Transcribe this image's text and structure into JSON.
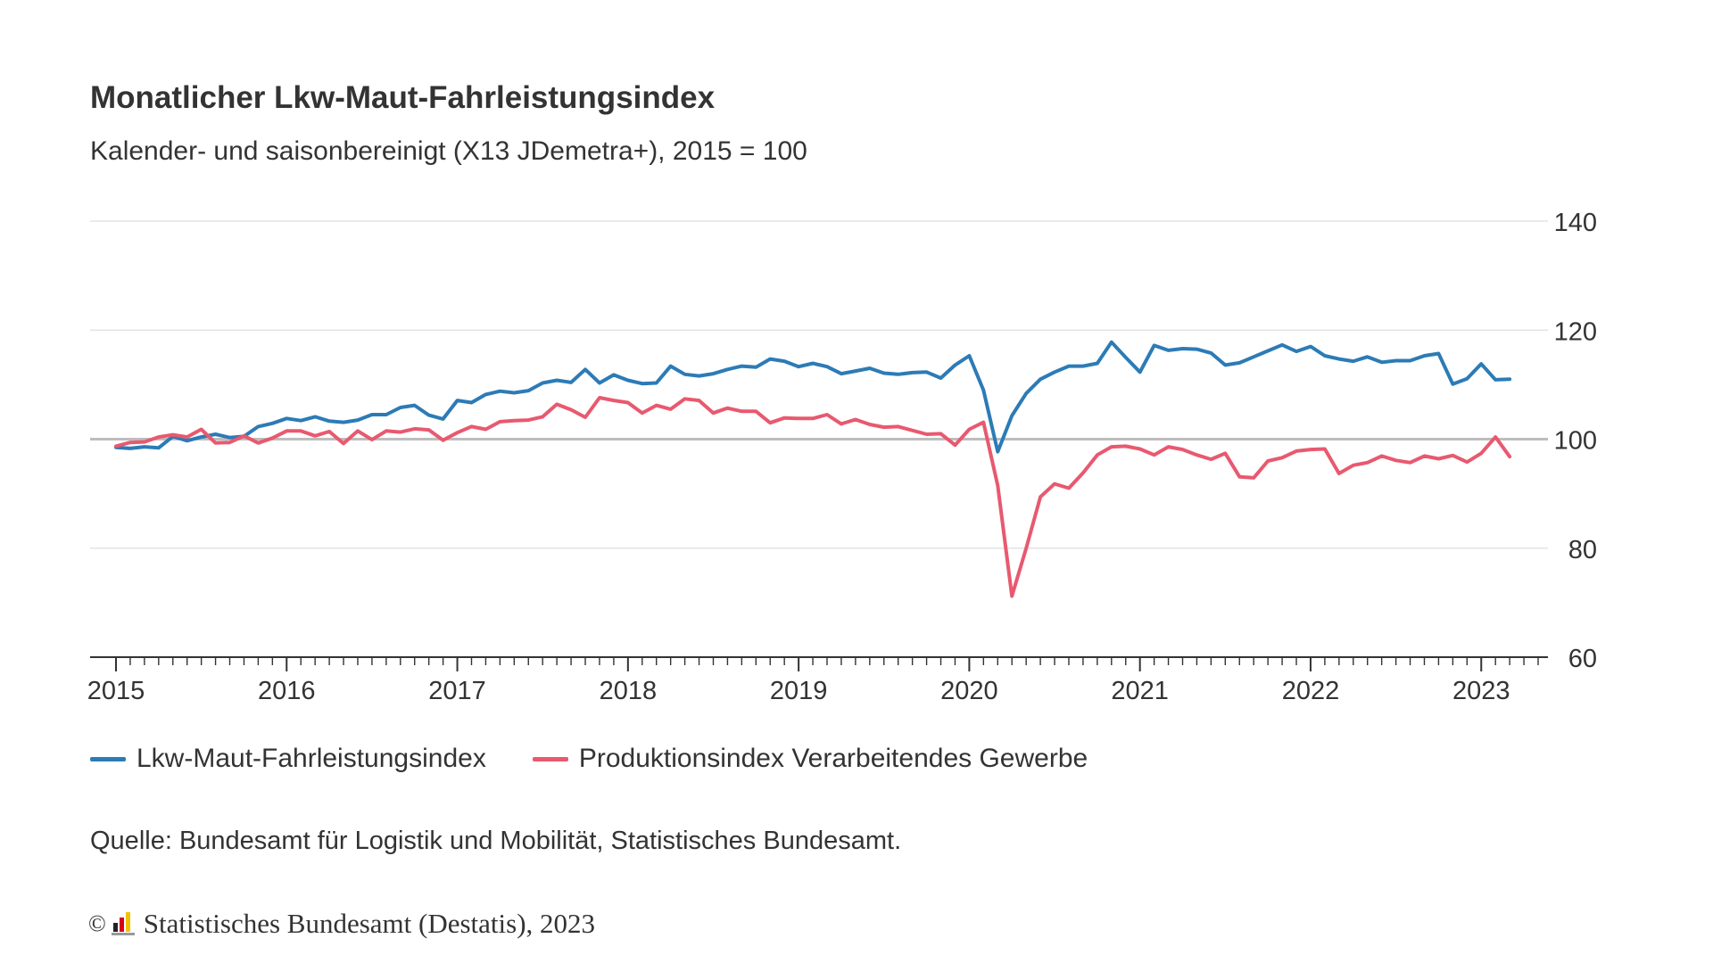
{
  "title": "Monatlicher Lkw-Maut-Fahrleistungsindex",
  "subtitle": "Kalender- und saisonbereinigt (X13 JDemetra+), 2015 = 100",
  "legend": {
    "series1": "Lkw-Maut-Fahrleistungsindex",
    "series2": "Produktionsindex Verarbeitendes Gewerbe"
  },
  "source": "Quelle: Bundesamt für Logistik und Mobilität, Statistisches Bundesamt.",
  "copyright": {
    "symbol": "©",
    "text": "Statistisches Bundesamt (Destatis), 2023"
  },
  "colors": {
    "series1": "#2c7bb6",
    "series2": "#e8596f"
  },
  "chart_data": {
    "type": "line",
    "xlabel": "",
    "ylabel": "",
    "ylim": [
      60,
      140
    ],
    "yticks": [
      60,
      80,
      100,
      120,
      140
    ],
    "grid": true,
    "reference_line": 100,
    "legend_position": "bottom",
    "x_start": "2015-01",
    "x_end": "2023-04",
    "xticks": [
      "2015",
      "2016",
      "2017",
      "2018",
      "2019",
      "2020",
      "2021",
      "2022",
      "2023"
    ],
    "series": [
      {
        "name": "Lkw-Maut-Fahrleistungsindex",
        "color": "#2c7bb6",
        "values": [
          98.5,
          98.3,
          98.6,
          98.4,
          100.5,
          99.7,
          100.4,
          100.9,
          100.3,
          100.5,
          102.3,
          102.9,
          103.8,
          103.4,
          104.1,
          103.3,
          103.1,
          103.5,
          104.5,
          104.5,
          105.8,
          106.2,
          104.4,
          103.7,
          107.1,
          106.7,
          108.2,
          108.8,
          108.5,
          108.9,
          110.3,
          110.8,
          110.4,
          112.8,
          110.3,
          111.8,
          110.8,
          110.2,
          110.3,
          113.4,
          111.9,
          111.6,
          112.0,
          112.8,
          113.4,
          113.2,
          114.7,
          114.3,
          113.3,
          113.9,
          113.3,
          112.0,
          112.5,
          113.0,
          112.1,
          111.9,
          112.2,
          112.3,
          111.2,
          113.6,
          115.3,
          109.0,
          97.7,
          104.3,
          108.4,
          111.0,
          112.3,
          113.4,
          113.4,
          113.9,
          117.8,
          115.0,
          112.3,
          117.2,
          116.3,
          116.6,
          116.5,
          115.8,
          113.6,
          114.0,
          115.1,
          116.2,
          117.3,
          116.1,
          117.0,
          115.3,
          114.7,
          114.3,
          115.1,
          114.1,
          114.4,
          114.4,
          115.3,
          115.7,
          110.1,
          111.1,
          113.8,
          110.9,
          111.0
        ]
      },
      {
        "name": "Produktionsindex Verarbeitendes Gewerbe",
        "color": "#e8596f",
        "values": [
          98.7,
          99.4,
          99.5,
          100.4,
          100.8,
          100.4,
          101.8,
          99.3,
          99.4,
          100.6,
          99.3,
          100.2,
          101.5,
          101.5,
          100.6,
          101.4,
          99.2,
          101.5,
          99.9,
          101.5,
          101.3,
          101.9,
          101.7,
          99.8,
          101.2,
          102.3,
          101.8,
          103.2,
          103.4,
          103.5,
          104.1,
          106.4,
          105.4,
          104.0,
          107.6,
          107.1,
          106.7,
          104.8,
          106.2,
          105.5,
          107.4,
          107.1,
          104.8,
          105.7,
          105.1,
          105.1,
          103.0,
          103.9,
          103.8,
          103.8,
          104.5,
          102.8,
          103.6,
          102.7,
          102.2,
          102.3,
          101.6,
          100.9,
          101.0,
          98.9,
          101.8,
          103.1,
          91.5,
          71.2,
          80.0,
          89.4,
          91.8,
          91.0,
          93.8,
          97.1,
          98.6,
          98.7,
          98.2,
          97.1,
          98.6,
          98.1,
          97.1,
          96.3,
          97.4,
          93.1,
          92.9,
          96.0,
          96.6,
          97.8,
          98.1,
          98.2,
          93.7,
          95.2,
          95.7,
          96.9,
          96.1,
          95.7,
          96.9,
          96.4,
          97.0,
          95.8,
          97.4,
          100.4,
          96.8
        ]
      }
    ]
  }
}
